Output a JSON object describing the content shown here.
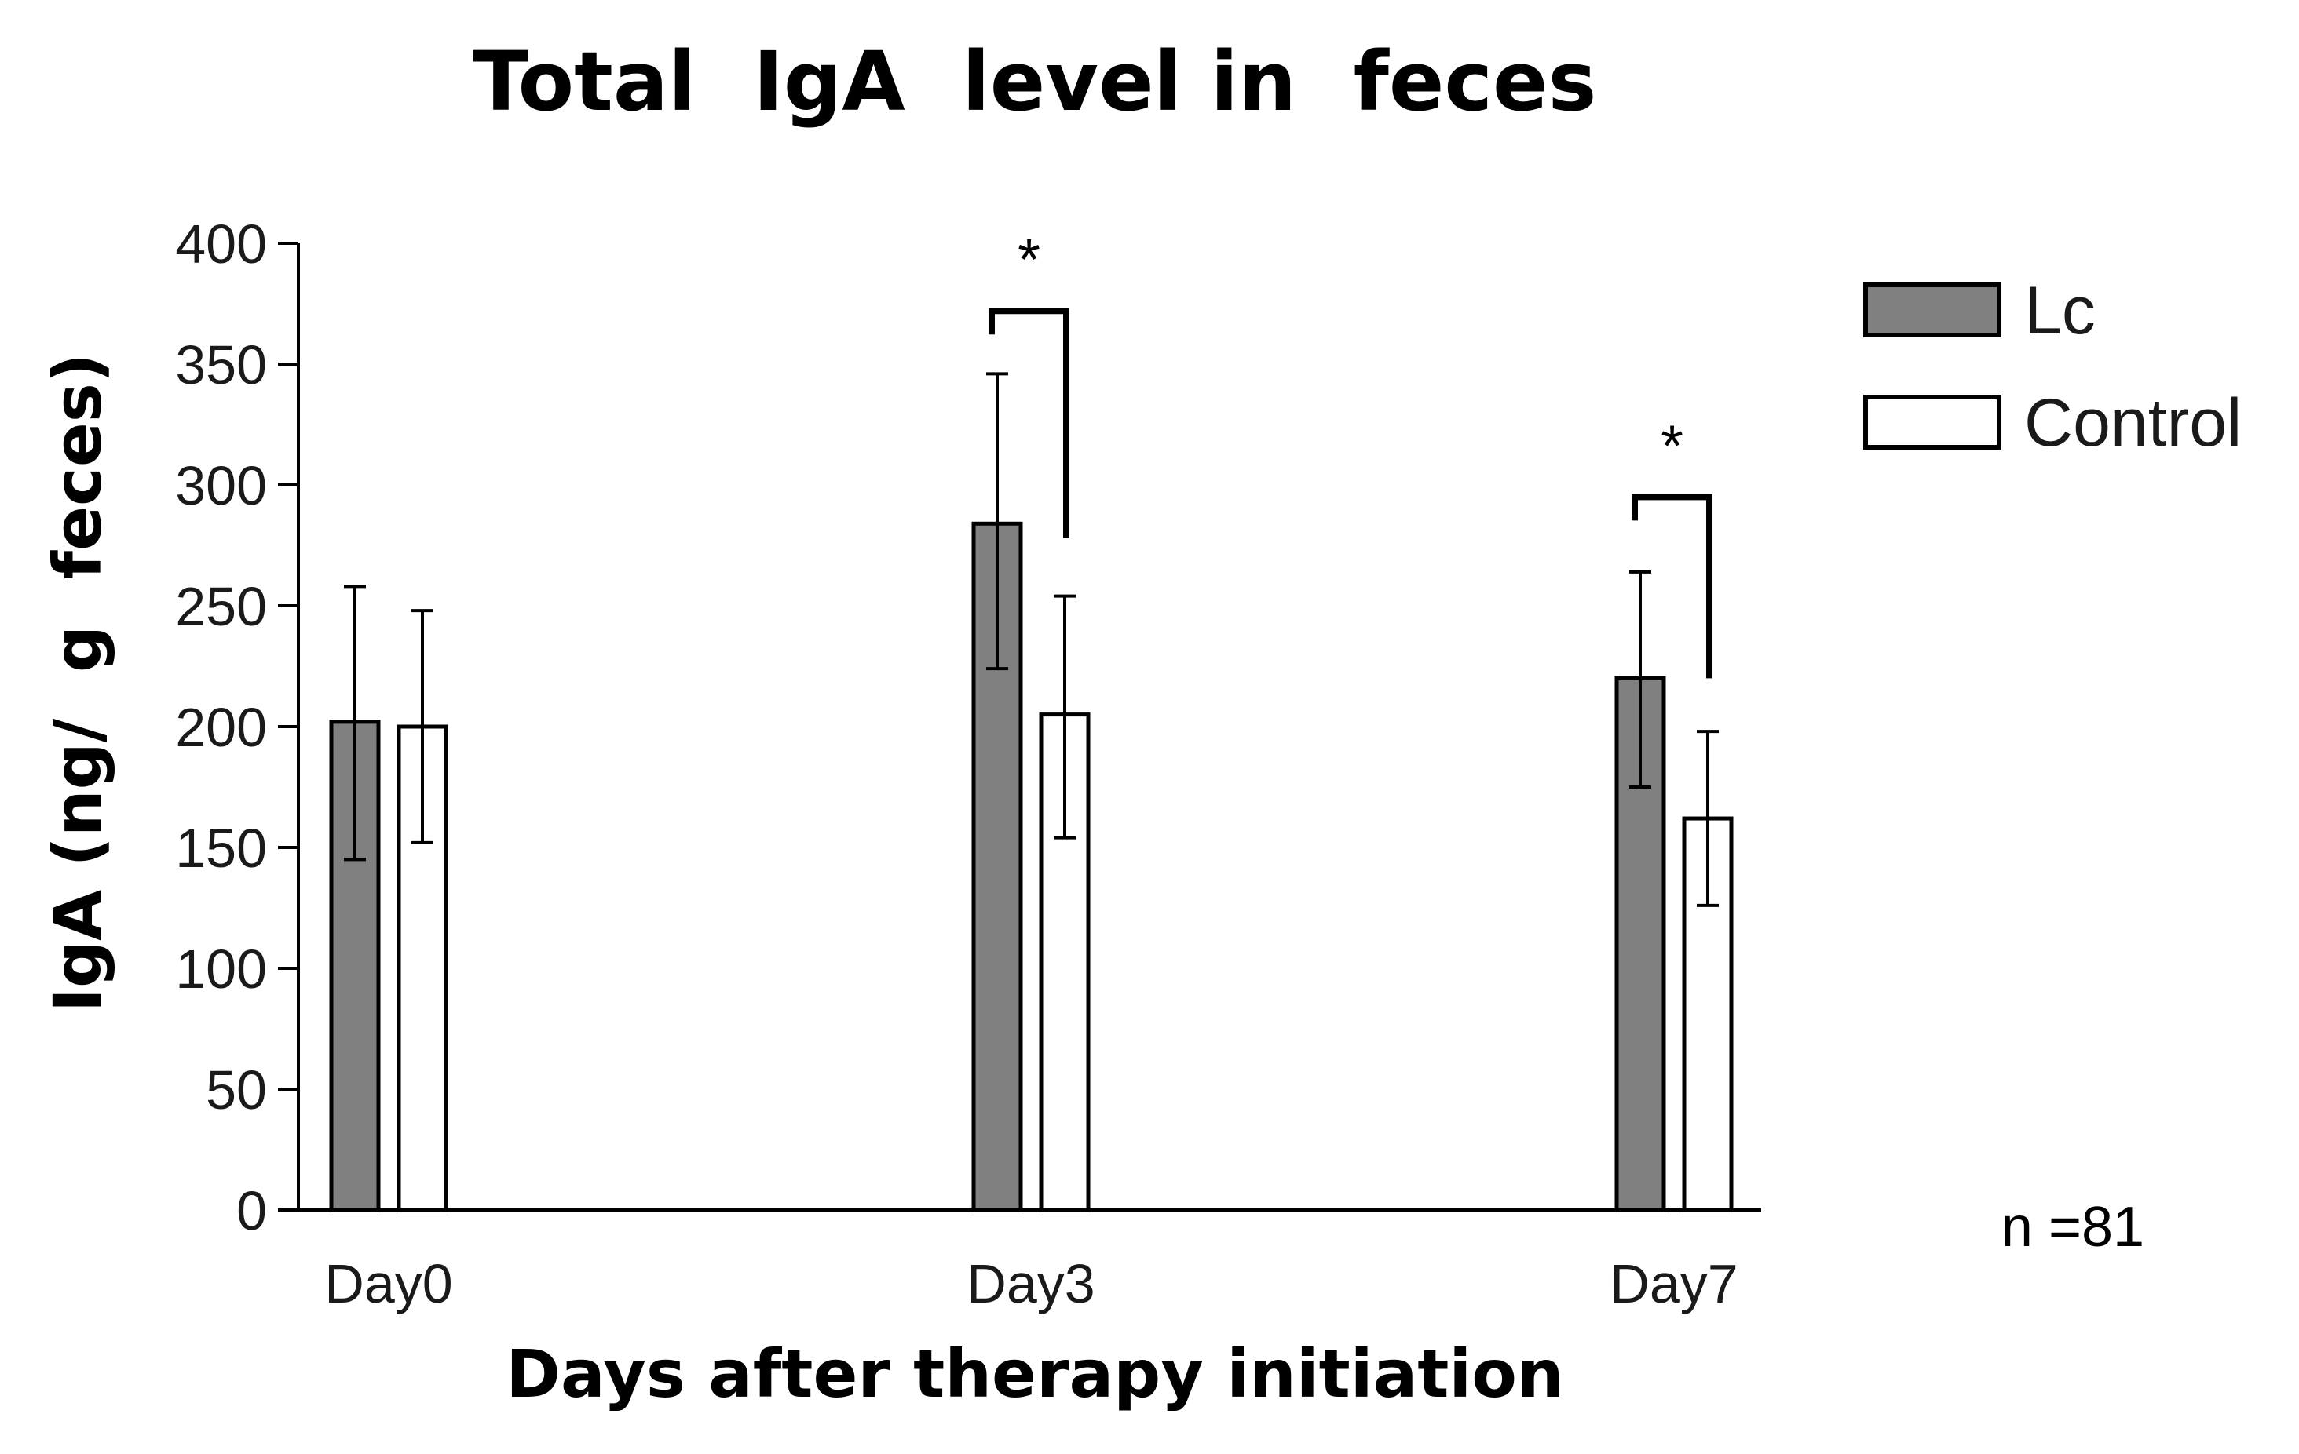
{
  "chart_data": {
    "type": "bar",
    "title": "Total  IgA  level in  feces",
    "xlabel": "Days after therapy initiation",
    "ylabel": "IgA (ng/  g  feces)",
    "categories": [
      "Day0",
      "Day3",
      "Day7"
    ],
    "ylim": [
      0,
      400
    ],
    "yticks": [
      0,
      50,
      100,
      150,
      200,
      250,
      300,
      350,
      400
    ],
    "series": [
      {
        "name": "Lc",
        "color": "#808080",
        "values": [
          202,
          284,
          220
        ],
        "err_low": [
          145,
          224,
          175
        ],
        "err_high": [
          258,
          346,
          264
        ]
      },
      {
        "name": "Control",
        "color": "#ffffff",
        "values": [
          200,
          205,
          162
        ],
        "err_low": [
          152,
          154,
          126
        ],
        "err_high": [
          248,
          254,
          198
        ]
      }
    ],
    "significance": [
      {
        "category": "Day3",
        "label": "*",
        "bracket_left": 372,
        "bracket_right_top": 372,
        "bracket_right_bottom": 278
      },
      {
        "category": "Day7",
        "label": "*",
        "bracket_left": 295,
        "bracket_right_top": 295,
        "bracket_right_bottom": 220
      }
    ],
    "legend_position": "top-right",
    "grid": false,
    "annotation": "n =81"
  }
}
